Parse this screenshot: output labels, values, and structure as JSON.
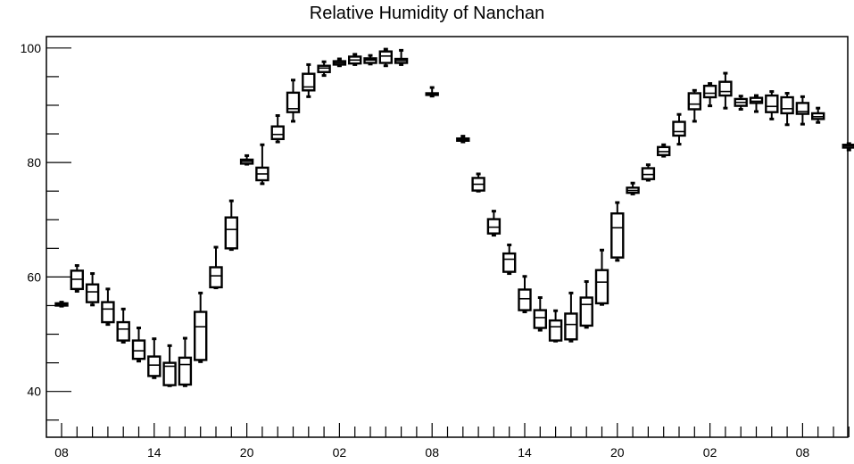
{
  "chart_data": {
    "type": "box",
    "title": "Relative Humidity of Nanchan",
    "xlabel": "",
    "ylabel": "",
    "ylim": [
      32,
      102
    ],
    "y_ticks": [
      40,
      60,
      80,
      100
    ],
    "x_tick_labels": [
      "08",
      "14",
      "20",
      "02",
      "08",
      "14",
      "20",
      "02",
      "08"
    ],
    "x_tick_hours": [
      0,
      6,
      12,
      18,
      24,
      30,
      36,
      42,
      48
    ],
    "grid": false,
    "boxes": [
      {
        "hour": 0,
        "min": 54.9,
        "q1": 55.0,
        "median": 55.2,
        "q3": 55.4,
        "max": 55.6
      },
      {
        "hour": 1,
        "min": 57.5,
        "q1": 57.9,
        "median": 59.6,
        "q3": 61.1,
        "max": 62.0
      },
      {
        "hour": 2,
        "min": 55.1,
        "q1": 55.6,
        "median": 57.4,
        "q3": 58.7,
        "max": 60.6
      },
      {
        "hour": 3,
        "min": 51.7,
        "q1": 52.1,
        "median": 54.4,
        "q3": 55.6,
        "max": 57.9
      },
      {
        "hour": 4,
        "min": 48.6,
        "q1": 48.9,
        "median": 50.9,
        "q3": 52.1,
        "max": 54.4
      },
      {
        "hour": 5,
        "min": 45.3,
        "q1": 45.7,
        "median": 47.1,
        "q3": 48.9,
        "max": 51.1
      },
      {
        "hour": 6,
        "min": 42.4,
        "q1": 42.7,
        "median": 44.6,
        "q3": 46.1,
        "max": 49.2
      },
      {
        "hour": 7,
        "min": 41.0,
        "q1": 41.1,
        "median": 44.4,
        "q3": 45.0,
        "max": 48.0
      },
      {
        "hour": 8,
        "min": 41.0,
        "q1": 41.2,
        "median": 44.7,
        "q3": 45.9,
        "max": 49.3
      },
      {
        "hour": 9,
        "min": 45.2,
        "q1": 45.5,
        "median": 51.3,
        "q3": 53.9,
        "max": 57.2
      },
      {
        "hour": 10,
        "min": 58.1,
        "q1": 58.2,
        "median": 60.2,
        "q3": 61.7,
        "max": 65.2
      },
      {
        "hour": 11,
        "min": 64.8,
        "q1": 65.0,
        "median": 68.3,
        "q3": 70.4,
        "max": 73.3
      },
      {
        "hour": 12,
        "min": 79.7,
        "q1": 79.8,
        "median": 80.2,
        "q3": 80.5,
        "max": 81.2
      },
      {
        "hour": 13,
        "min": 76.3,
        "q1": 76.9,
        "median": 78.0,
        "q3": 79.1,
        "max": 83.1
      },
      {
        "hour": 14,
        "min": 83.6,
        "q1": 84.1,
        "median": 84.9,
        "q3": 86.3,
        "max": 88.2
      },
      {
        "hour": 15,
        "min": 87.2,
        "q1": 88.8,
        "median": 89.4,
        "q3": 92.2,
        "max": 94.4
      },
      {
        "hour": 16,
        "min": 91.5,
        "q1": 92.6,
        "median": 93.2,
        "q3": 95.5,
        "max": 97.1
      },
      {
        "hour": 17,
        "min": 95.2,
        "q1": 95.8,
        "median": 96.5,
        "q3": 96.9,
        "max": 97.6
      },
      {
        "hour": 18,
        "min": 96.9,
        "q1": 97.1,
        "median": 97.4,
        "q3": 97.7,
        "max": 98.1
      },
      {
        "hour": 19,
        "min": 97.1,
        "q1": 97.3,
        "median": 97.9,
        "q3": 98.5,
        "max": 98.9
      },
      {
        "hour": 20,
        "min": 97.2,
        "q1": 97.4,
        "median": 97.9,
        "q3": 98.2,
        "max": 98.7
      },
      {
        "hour": 21,
        "min": 96.9,
        "q1": 97.4,
        "median": 98.6,
        "q3": 99.4,
        "max": 99.8
      },
      {
        "hour": 22,
        "min": 97.1,
        "q1": 97.4,
        "median": 97.8,
        "q3": 98.1,
        "max": 99.6
      },
      {
        "hour": 24,
        "min": 91.6,
        "q1": 91.8,
        "median": 91.9,
        "q3": 92.1,
        "max": 93.1
      },
      {
        "hour": 26,
        "min": 83.6,
        "q1": 83.8,
        "median": 84.0,
        "q3": 84.2,
        "max": 84.6
      },
      {
        "hour": 27,
        "min": 75.0,
        "q1": 75.1,
        "median": 76.2,
        "q3": 77.3,
        "max": 78.0
      },
      {
        "hour": 28,
        "min": 67.3,
        "q1": 67.6,
        "median": 68.7,
        "q3": 70.1,
        "max": 71.5
      },
      {
        "hour": 29,
        "min": 60.6,
        "q1": 60.9,
        "median": 63.1,
        "q3": 64.1,
        "max": 65.6
      },
      {
        "hour": 30,
        "min": 53.9,
        "q1": 54.2,
        "median": 56.2,
        "q3": 57.8,
        "max": 60.1
      },
      {
        "hour": 31,
        "min": 50.7,
        "q1": 51.1,
        "median": 52.9,
        "q3": 54.2,
        "max": 56.4
      },
      {
        "hour": 32,
        "min": 48.8,
        "q1": 48.9,
        "median": 51.3,
        "q3": 52.4,
        "max": 54.1
      },
      {
        "hour": 33,
        "min": 48.8,
        "q1": 49.1,
        "median": 51.7,
        "q3": 53.6,
        "max": 57.2
      },
      {
        "hour": 34,
        "min": 51.2,
        "q1": 51.5,
        "median": 55.2,
        "q3": 56.4,
        "max": 59.2
      },
      {
        "hour": 35,
        "min": 55.2,
        "q1": 55.4,
        "median": 59.1,
        "q3": 61.2,
        "max": 64.7
      },
      {
        "hour": 36,
        "min": 62.9,
        "q1": 63.4,
        "median": 68.6,
        "q3": 71.1,
        "max": 73.0
      },
      {
        "hour": 37,
        "min": 74.5,
        "q1": 74.7,
        "median": 75.1,
        "q3": 75.6,
        "max": 76.4
      },
      {
        "hour": 38,
        "min": 76.9,
        "q1": 77.1,
        "median": 77.9,
        "q3": 79.0,
        "max": 79.6
      },
      {
        "hour": 39,
        "min": 81.1,
        "q1": 81.3,
        "median": 81.9,
        "q3": 82.7,
        "max": 83.1
      },
      {
        "hour": 40,
        "min": 83.2,
        "q1": 84.7,
        "median": 85.4,
        "q3": 87.1,
        "max": 88.4
      },
      {
        "hour": 41,
        "min": 87.2,
        "q1": 89.3,
        "median": 90.2,
        "q3": 92.1,
        "max": 92.6
      },
      {
        "hour": 42,
        "min": 89.9,
        "q1": 91.4,
        "median": 92.1,
        "q3": 93.4,
        "max": 93.8
      },
      {
        "hour": 43,
        "min": 89.5,
        "q1": 91.7,
        "median": 92.4,
        "q3": 94.1,
        "max": 95.6
      },
      {
        "hour": 44,
        "min": 89.3,
        "q1": 89.9,
        "median": 90.5,
        "q3": 91.1,
        "max": 91.6
      },
      {
        "hour": 45,
        "min": 88.9,
        "q1": 90.4,
        "median": 90.7,
        "q3": 91.3,
        "max": 91.7
      },
      {
        "hour": 46,
        "min": 87.6,
        "q1": 88.8,
        "median": 89.8,
        "q3": 91.7,
        "max": 92.4
      },
      {
        "hour": 47,
        "min": 86.6,
        "q1": 88.6,
        "median": 89.4,
        "q3": 91.4,
        "max": 92.1
      },
      {
        "hour": 48,
        "min": 86.7,
        "q1": 88.5,
        "median": 88.9,
        "q3": 90.4,
        "max": 91.5
      },
      {
        "hour": 49,
        "min": 87.0,
        "q1": 87.6,
        "median": 88.0,
        "q3": 88.6,
        "max": 89.5
      },
      {
        "hour": 51,
        "min": 82.2,
        "q1": 82.6,
        "median": 82.9,
        "q3": 83.1,
        "max": 83.3
      }
    ]
  }
}
